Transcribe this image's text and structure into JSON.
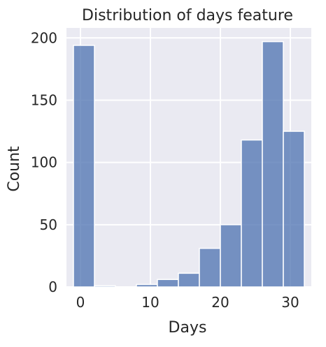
{
  "chart_data": {
    "type": "bar",
    "title": "Distribution of days feature",
    "xlabel": "Days",
    "ylabel": "Count",
    "xlim": [
      -2,
      33
    ],
    "ylim": [
      0,
      208
    ],
    "xticks": [
      0,
      10,
      20,
      30
    ],
    "yticks": [
      0,
      50,
      100,
      150,
      200
    ],
    "grid": true,
    "bins": [
      {
        "x0": -1.0,
        "x1": 2.0,
        "count": 194
      },
      {
        "x0": 2.0,
        "x1": 5.0,
        "count": 1
      },
      {
        "x0": 5.0,
        "x1": 8.0,
        "count": 0
      },
      {
        "x0": 8.0,
        "x1": 11.0,
        "count": 2
      },
      {
        "x0": 11.0,
        "x1": 14.0,
        "count": 6
      },
      {
        "x0": 14.0,
        "x1": 17.0,
        "count": 11
      },
      {
        "x0": 17.0,
        "x1": 20.0,
        "count": 31
      },
      {
        "x0": 20.0,
        "x1": 23.0,
        "count": 50
      },
      {
        "x0": 23.0,
        "x1": 26.0,
        "count": 118
      },
      {
        "x0": 26.0,
        "x1": 29.0,
        "count": 197
      },
      {
        "x0": 29.0,
        "x1": 32.0,
        "count": 125
      }
    ],
    "colors": {
      "bar": "#4c72b0",
      "bar_opacity": 0.75,
      "background": "#eaeaf2",
      "grid": "#ffffff"
    }
  }
}
